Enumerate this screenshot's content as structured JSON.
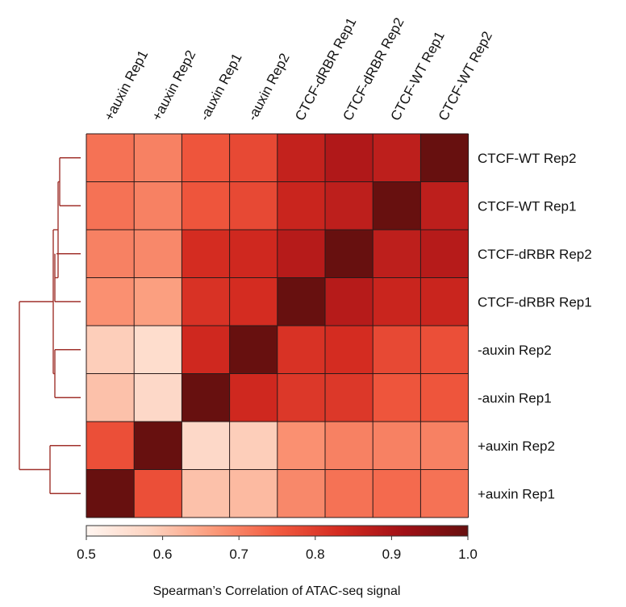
{
  "chart_data": {
    "type": "heatmap",
    "title": "",
    "columns": [
      "+auxin Rep1",
      "+auxin Rep2",
      "-auxin Rep1",
      "-auxin Rep2",
      "CTCF-dRBR Rep1",
      "CTCF-dRBR Rep2",
      "CTCF-WT Rep1",
      "CTCF-WT Rep2"
    ],
    "rows": [
      "CTCF-WT Rep2",
      "CTCF-WT Rep1",
      "CTCF-dRBR Rep2",
      "CTCF-dRBR Rep1",
      "-auxin Rep2",
      "-auxin Rep1",
      "+auxin Rep2",
      "+auxin Rep1"
    ],
    "values": [
      [
        0.72,
        0.7,
        0.76,
        0.78,
        0.86,
        0.89,
        0.87,
        1.0
      ],
      [
        0.72,
        0.7,
        0.76,
        0.78,
        0.85,
        0.87,
        1.0,
        0.87
      ],
      [
        0.7,
        0.69,
        0.83,
        0.84,
        0.88,
        1.0,
        0.87,
        0.88
      ],
      [
        0.68,
        0.66,
        0.82,
        0.83,
        1.0,
        0.88,
        0.85,
        0.85
      ],
      [
        0.59,
        0.56,
        0.84,
        1.0,
        0.82,
        0.83,
        0.78,
        0.77
      ],
      [
        0.61,
        0.57,
        1.0,
        0.84,
        0.81,
        0.81,
        0.76,
        0.76
      ],
      [
        0.77,
        1.0,
        0.57,
        0.59,
        0.68,
        0.7,
        0.7,
        0.7
      ],
      [
        1.0,
        0.77,
        0.61,
        0.62,
        0.69,
        0.72,
        0.73,
        0.72
      ]
    ],
    "colorbar": {
      "range": [
        0.5,
        1.0
      ],
      "ticks": [
        "0.5",
        "0.6",
        "0.7",
        "0.8",
        "0.9",
        "1.0"
      ],
      "label": "Spearman’s Correlation of ATAC-seq signal",
      "colors": [
        "#fff5f0",
        "#fdd3c0",
        "#fb9a7a",
        "#f25b40",
        "#d32a20",
        "#a01016",
        "#67100f"
      ]
    },
    "dendrogram": {
      "side": "left",
      "color": "#a0322c"
    }
  }
}
